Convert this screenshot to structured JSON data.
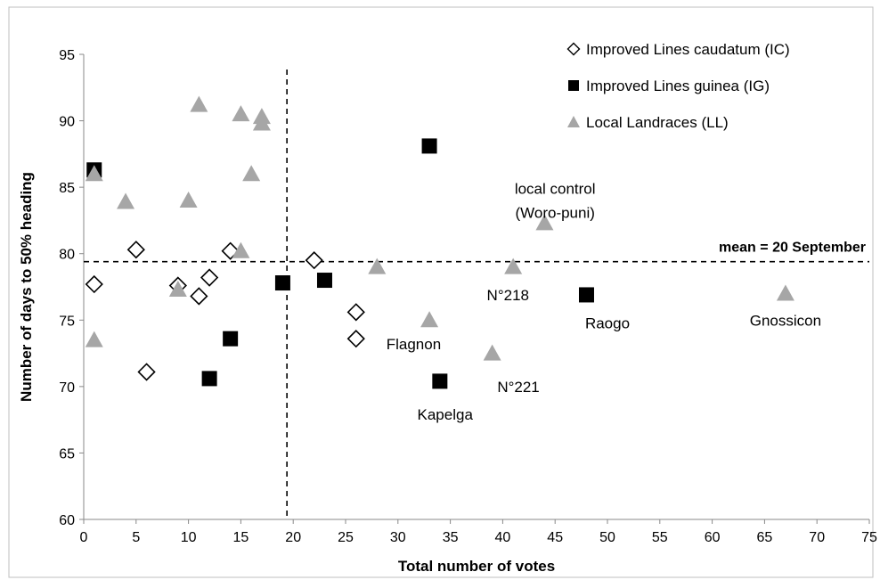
{
  "chart_data": {
    "type": "scatter",
    "xlabel": "Total number of votes",
    "ylabel": "Number of days to 50% heading",
    "xlim": [
      0,
      75
    ],
    "ylim": [
      60,
      95
    ],
    "xticks": [
      "0",
      "5",
      "10",
      "15",
      "20",
      "25",
      "30",
      "35",
      "40",
      "45",
      "50",
      "55",
      "60",
      "65",
      "70",
      "75"
    ],
    "yticks": [
      "60",
      "65",
      "70",
      "75",
      "80",
      "85",
      "90",
      "95"
    ],
    "grid": false,
    "legend_position": "top-right",
    "series": [
      {
        "name": "Improved Lines caudatum (IC)",
        "marker": "diamond-open",
        "color": "#000000",
        "points": [
          {
            "x": 1,
            "y": 77.7
          },
          {
            "x": 5,
            "y": 80.3
          },
          {
            "x": 6,
            "y": 71.1
          },
          {
            "x": 9,
            "y": 77.6
          },
          {
            "x": 11,
            "y": 76.8
          },
          {
            "x": 12,
            "y": 78.2
          },
          {
            "x": 14,
            "y": 80.2
          },
          {
            "x": 22,
            "y": 79.5
          },
          {
            "x": 26,
            "y": 75.6
          },
          {
            "x": 26,
            "y": 73.6
          }
        ]
      },
      {
        "name": "Improved Lines guinea (IG)",
        "marker": "square-filled",
        "color": "#000000",
        "points": [
          {
            "x": 1,
            "y": 86.3
          },
          {
            "x": 12,
            "y": 70.6
          },
          {
            "x": 14,
            "y": 73.6
          },
          {
            "x": 19,
            "y": 77.8
          },
          {
            "x": 23,
            "y": 78.0
          },
          {
            "x": 33,
            "y": 88.1
          },
          {
            "x": 34,
            "y": 70.4
          },
          {
            "x": 48,
            "y": 76.9
          }
        ]
      },
      {
        "name": "Local Landraces (LL)",
        "marker": "triangle-filled",
        "color": "#a6a6a6",
        "points": [
          {
            "x": 1,
            "y": 86.0
          },
          {
            "x": 1,
            "y": 73.5
          },
          {
            "x": 4,
            "y": 83.9
          },
          {
            "x": 9,
            "y": 77.3
          },
          {
            "x": 10,
            "y": 84.0
          },
          {
            "x": 11,
            "y": 91.2
          },
          {
            "x": 15,
            "y": 90.5
          },
          {
            "x": 15,
            "y": 80.2
          },
          {
            "x": 16,
            "y": 86.0
          },
          {
            "x": 17,
            "y": 90.3
          },
          {
            "x": 17,
            "y": 89.8
          },
          {
            "x": 28,
            "y": 79.0
          },
          {
            "x": 33,
            "y": 75.0
          },
          {
            "x": 39,
            "y": 72.5
          },
          {
            "x": 41,
            "y": 79.0
          },
          {
            "x": 44,
            "y": 82.3
          },
          {
            "x": 67,
            "y": 77.0
          }
        ]
      }
    ],
    "reference_lines": [
      {
        "orientation": "horizontal",
        "value": 79.4,
        "style": "dashed",
        "label": "mean = 20 September"
      },
      {
        "orientation": "vertical",
        "value": 19.4,
        "style": "dashed"
      }
    ],
    "annotations": [
      {
        "text": "local control",
        "x": 45,
        "y": 84.9
      },
      {
        "text": "(Woro-puni)",
        "x": 45,
        "y": 83.1
      },
      {
        "text": "N°218",
        "x": 40.5,
        "y": 76.9
      },
      {
        "text": "Raogo",
        "x": 50,
        "y": 74.8
      },
      {
        "text": "Gnossicon",
        "x": 67,
        "y": 75.0
      },
      {
        "text": "Flagnon",
        "x": 31.5,
        "y": 73.2
      },
      {
        "text": "N°221",
        "x": 41.5,
        "y": 70.0
      },
      {
        "text": "Kapelga",
        "x": 34.5,
        "y": 67.9
      }
    ]
  }
}
